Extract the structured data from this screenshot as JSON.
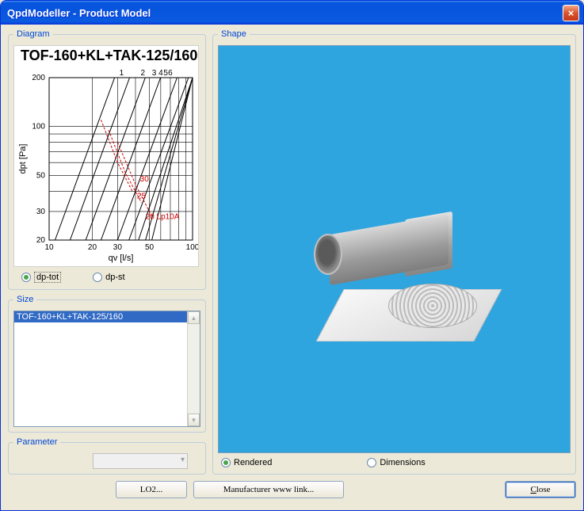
{
  "window": {
    "title": "QpdModeller - Product Model"
  },
  "diagram": {
    "legend": "Diagram",
    "title": "TOF-160+KL+TAK-125/160",
    "xlabel": "qv [l/s]",
    "ylabel": "dpt [Pa]",
    "ylim": [
      20,
      200
    ],
    "xlim": [
      10,
      100
    ],
    "yticks": [
      20,
      30,
      50,
      100,
      200
    ],
    "xticks": [
      10,
      20,
      30,
      50,
      100
    ],
    "top_labels": [
      "1",
      "2",
      "3",
      "4",
      "5",
      "6"
    ],
    "annotations": [
      {
        "text": "30",
        "color": "#d00000"
      },
      {
        "text": "25",
        "color": "#d00000"
      },
      {
        "text": "20 Lp10A",
        "color": "#d00000"
      }
    ],
    "axis_color": "#000000",
    "grid_color": "#000000",
    "curve_color": "#000000",
    "annot_color": "#d00000",
    "radios": {
      "dp_tot": "dp-tot",
      "dp_st": "dp-st",
      "selected": "dp-tot"
    }
  },
  "size": {
    "legend": "Size",
    "items": [
      "TOF-160+KL+TAK-125/160"
    ],
    "selected": 0
  },
  "parameter": {
    "legend": "Parameter",
    "value": ""
  },
  "shape": {
    "legend": "Shape",
    "bg_color": "#2fa5e0",
    "radios": {
      "rendered": "Rendered",
      "dimensions": "Dimensions",
      "selected": "Rendered"
    }
  },
  "buttons": {
    "lo2": "LO2...",
    "mfr": "Manufacturer www link...",
    "close": "Close"
  }
}
